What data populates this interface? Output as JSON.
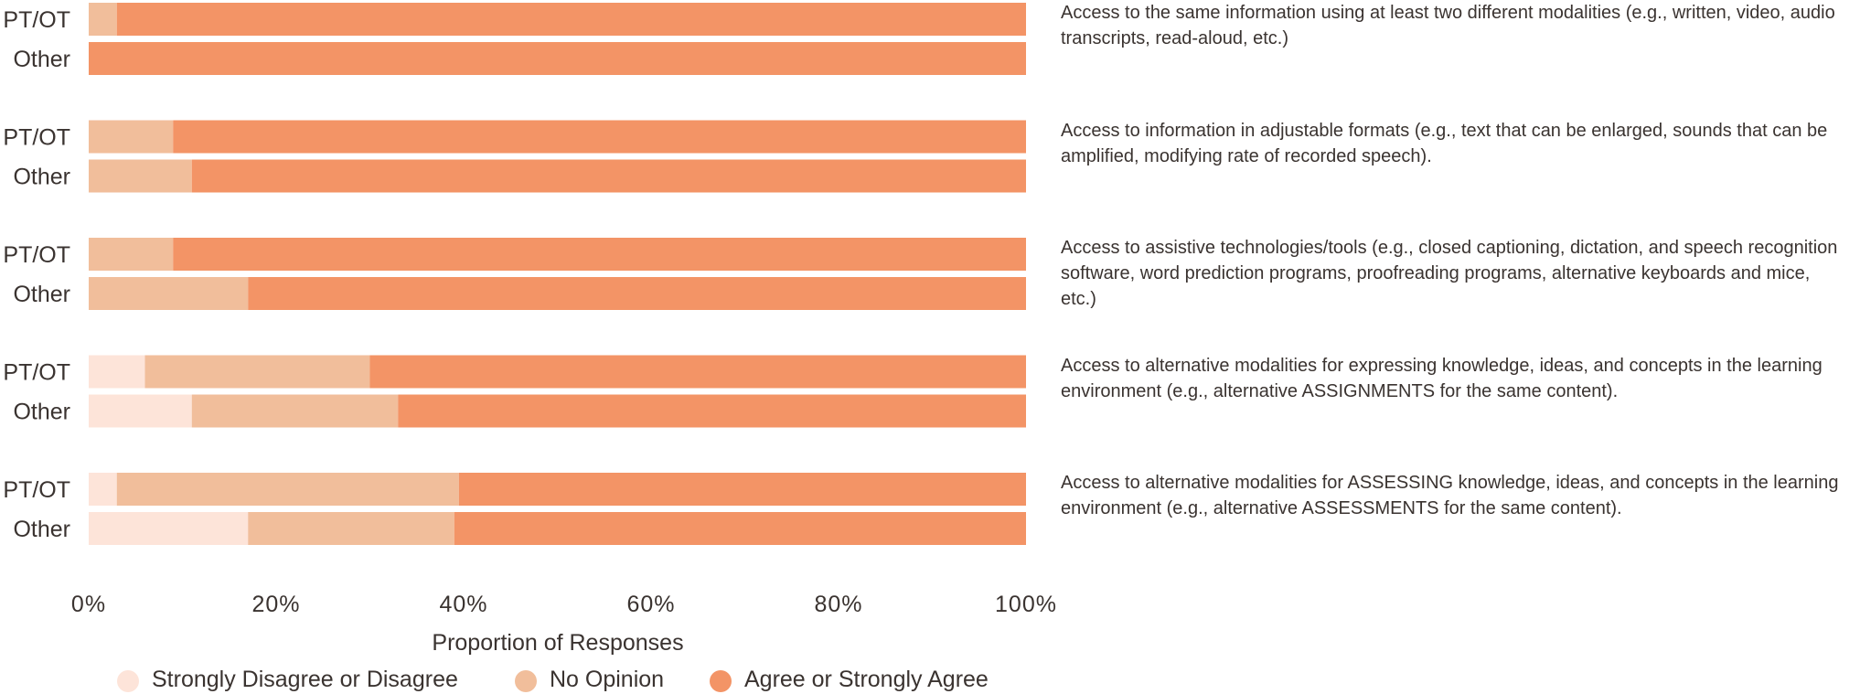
{
  "chart_data": {
    "type": "bar",
    "orientation": "horizontal",
    "stacked": true,
    "xlabel": "Proportion of Responses",
    "xlim": [
      0,
      100
    ],
    "ticks": [
      "0%",
      "20%",
      "40%",
      "60%",
      "80%",
      "100%"
    ],
    "tick_values": [
      0,
      20,
      40,
      60,
      80,
      100
    ],
    "group_labels": [
      "PT/OT",
      "Other"
    ],
    "series": [
      {
        "name": "Strongly Disagree or Disagree",
        "color": "#fde4d9"
      },
      {
        "name": "No Opinion",
        "color": "#f1be9b"
      },
      {
        "name": "Agree or Strongly Agree",
        "color": "#f39466"
      }
    ],
    "items": [
      {
        "text": "Access to the same information using at least two different modalities (e.g., written, video, audio transcripts, read-aloud, etc.)",
        "bars": [
          {
            "group": "PT/OT",
            "values": [
              0,
              3,
              97
            ]
          },
          {
            "group": "Other",
            "values": [
              0,
              0,
              100
            ]
          }
        ]
      },
      {
        "text": "Access to information in adjustable formats (e.g., text that can be enlarged, sounds that can be amplified, modifying rate of recorded speech).",
        "bars": [
          {
            "group": "PT/OT",
            "values": [
              0,
              9,
              91
            ]
          },
          {
            "group": "Other",
            "values": [
              0,
              11,
              89
            ]
          }
        ]
      },
      {
        "text": "Access to assistive technologies/tools (e.g., closed captioning, dictation, and speech recognition software, word prediction programs, proofreading programs, alternative keyboards and mice, etc.)",
        "bars": [
          {
            "group": "PT/OT",
            "values": [
              0,
              9,
              91
            ]
          },
          {
            "group": "Other",
            "values": [
              0,
              17,
              83
            ]
          }
        ]
      },
      {
        "text": "Access to alternative modalities for expressing knowledge, ideas, and concepts in the learning environment (e.g., alternative ASSIGNMENTS for the same content).",
        "bars": [
          {
            "group": "PT/OT",
            "values": [
              6,
              24,
              70
            ]
          },
          {
            "group": "Other",
            "values": [
              11,
              22,
              67
            ]
          }
        ]
      },
      {
        "text": "Access to alternative modalities for ASSESSING knowledge, ideas, and concepts in the learning environment (e.g., alternative ASSESSMENTS for the same content).",
        "bars": [
          {
            "group": "PT/OT",
            "values": [
              3,
              36.5,
              60.5
            ]
          },
          {
            "group": "Other",
            "values": [
              17,
              22,
              61
            ]
          }
        ]
      }
    ],
    "legend": [
      "Strongly Disagree or Disagree",
      "No Opinion",
      "Agree or Strongly Agree"
    ],
    "legend_position": "bottom",
    "grid": false
  }
}
